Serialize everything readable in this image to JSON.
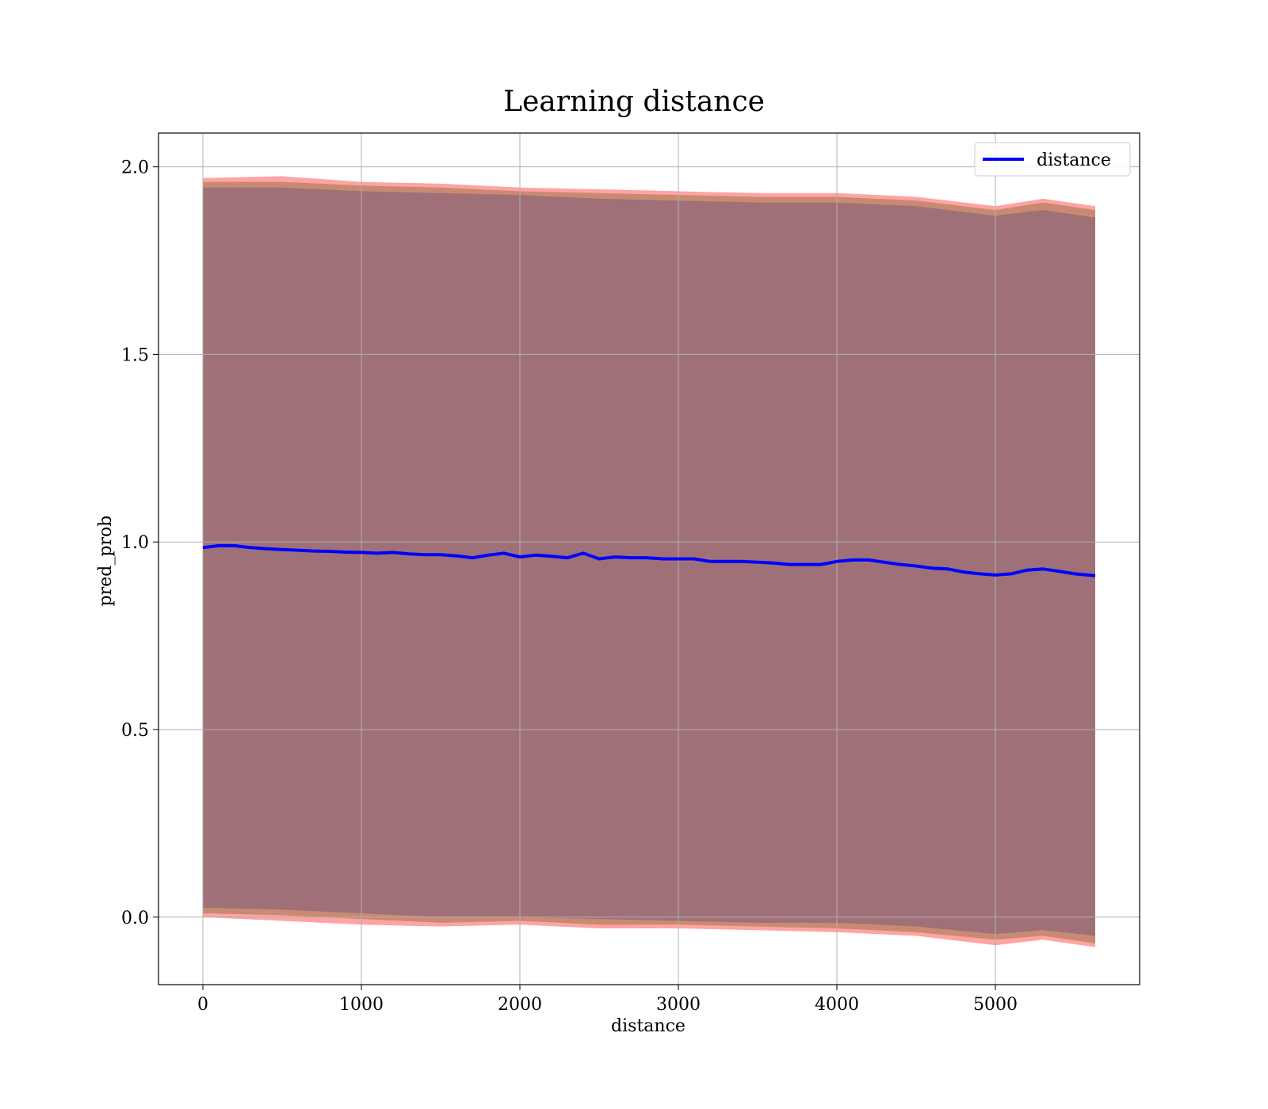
{
  "chart_data": {
    "type": "line",
    "title": "Learning distance",
    "xlabel": "distance",
    "ylabel": "pred_prob",
    "xlim": [
      -280,
      5910
    ],
    "ylim": [
      -0.18,
      2.09
    ],
    "xticks": [
      0,
      1000,
      2000,
      3000,
      4000,
      5000
    ],
    "xtick_labels": [
      "0",
      "1000",
      "2000",
      "3000",
      "4000",
      "5000"
    ],
    "yticks": [
      0.0,
      0.5,
      1.0,
      1.5,
      2.0
    ],
    "ytick_labels": [
      "0.0",
      "0.5",
      "1.0",
      "1.5",
      "2.0"
    ],
    "grid": true,
    "legend": {
      "position": "top-right",
      "entries": [
        "distance"
      ]
    },
    "series": [
      {
        "name": "distance",
        "color": "#0000ff",
        "x": [
          0,
          100,
          200,
          300,
          400,
          500,
          600,
          700,
          800,
          900,
          1000,
          1100,
          1200,
          1300,
          1400,
          1500,
          1600,
          1700,
          1800,
          1900,
          2000,
          2100,
          2200,
          2300,
          2400,
          2500,
          2600,
          2700,
          2800,
          2900,
          3000,
          3100,
          3200,
          3300,
          3400,
          3500,
          3600,
          3700,
          3800,
          3900,
          4000,
          4100,
          4200,
          4300,
          4400,
          4500,
          4600,
          4700,
          4800,
          4900,
          5000,
          5100,
          5200,
          5300,
          5400,
          5500,
          5630
        ],
        "y": [
          0.985,
          0.99,
          0.99,
          0.985,
          0.982,
          0.98,
          0.978,
          0.976,
          0.975,
          0.973,
          0.972,
          0.97,
          0.972,
          0.968,
          0.966,
          0.966,
          0.963,
          0.958,
          0.965,
          0.97,
          0.96,
          0.965,
          0.962,
          0.958,
          0.97,
          0.955,
          0.96,
          0.958,
          0.958,
          0.955,
          0.955,
          0.955,
          0.948,
          0.948,
          0.948,
          0.946,
          0.944,
          0.94,
          0.94,
          0.94,
          0.948,
          0.952,
          0.952,
          0.946,
          0.94,
          0.936,
          0.93,
          0.928,
          0.92,
          0.915,
          0.912,
          0.915,
          0.925,
          0.928,
          0.922,
          0.915,
          0.91
        ]
      }
    ],
    "bands": [
      {
        "name": "outer band",
        "color": "#ff9999",
        "x": [
          0,
          500,
          1000,
          1500,
          2000,
          2500,
          3000,
          3500,
          4000,
          4500,
          5000,
          5300,
          5630
        ],
        "upper": [
          1.97,
          1.975,
          1.96,
          1.955,
          1.945,
          1.94,
          1.935,
          1.93,
          1.93,
          1.92,
          1.895,
          1.915,
          1.895
        ],
        "lower": [
          0.0,
          -0.01,
          -0.02,
          -0.025,
          -0.02,
          -0.03,
          -0.03,
          -0.035,
          -0.04,
          -0.05,
          -0.075,
          -0.06,
          -0.08
        ]
      },
      {
        "name": "middle band",
        "color": "#c98a72",
        "x": [
          0,
          500,
          1000,
          1500,
          2000,
          2500,
          3000,
          3500,
          4000,
          4500,
          5000,
          5300,
          5630
        ],
        "upper": [
          1.96,
          1.96,
          1.95,
          1.945,
          1.935,
          1.93,
          1.925,
          1.92,
          1.92,
          1.91,
          1.885,
          1.905,
          1.885
        ],
        "lower": [
          0.01,
          0.005,
          -0.005,
          -0.015,
          -0.01,
          -0.02,
          -0.02,
          -0.025,
          -0.03,
          -0.04,
          -0.06,
          -0.05,
          -0.07
        ]
      },
      {
        "name": "inner band",
        "color": "#a07078",
        "x": [
          0,
          500,
          1000,
          1500,
          2000,
          2500,
          3000,
          3500,
          4000,
          4500,
          5000,
          5300,
          5630
        ],
        "upper": [
          1.945,
          1.945,
          1.935,
          1.93,
          1.925,
          1.915,
          1.91,
          1.905,
          1.905,
          1.895,
          1.87,
          1.885,
          1.865
        ],
        "lower": [
          0.025,
          0.02,
          0.01,
          0.0,
          0.0,
          -0.005,
          -0.01,
          -0.015,
          -0.015,
          -0.025,
          -0.045,
          -0.035,
          -0.05
        ]
      }
    ]
  }
}
